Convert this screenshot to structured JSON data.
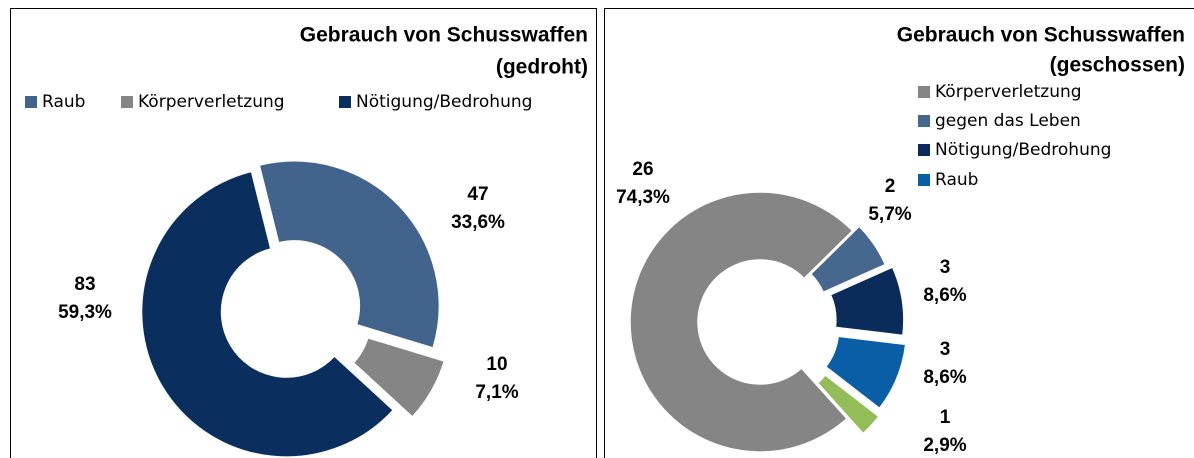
{
  "chart_data": [
    {
      "type": "donut",
      "title": [
        "Gebrauch von Schusswaffen",
        "(gedroht)"
      ],
      "categories": [
        "Raub",
        "Körperverletzung",
        "Nötigung/Bedrohung"
      ],
      "values": [
        47,
        10,
        83
      ],
      "percentages": [
        33.6,
        7.1,
        59.3
      ],
      "percentage_labels": [
        "33,6%",
        "7,1%",
        "59,3%"
      ],
      "colors": [
        "#42648c",
        "#858585",
        "#0a2f5e"
      ],
      "legend": "top"
    },
    {
      "type": "donut",
      "title": [
        "Gebrauch von Schusswaffen",
        "(geschossen)"
      ],
      "categories": [
        "Körperverletzung",
        "gegen das Leben",
        "Nötigung/Bedrohung",
        "Raub",
        null
      ],
      "values": [
        26,
        2,
        3,
        3,
        1
      ],
      "percentages": [
        74.3,
        5.7,
        8.6,
        8.6,
        2.9
      ],
      "percentage_labels": [
        "74,3%",
        "5,7%",
        "8,6%",
        "8,6%",
        "2,9%"
      ],
      "colors": [
        "#858585",
        "#46688f",
        "#0b2c5a",
        "#0a5ea6",
        "#92bd58"
      ],
      "legend": "right"
    }
  ]
}
